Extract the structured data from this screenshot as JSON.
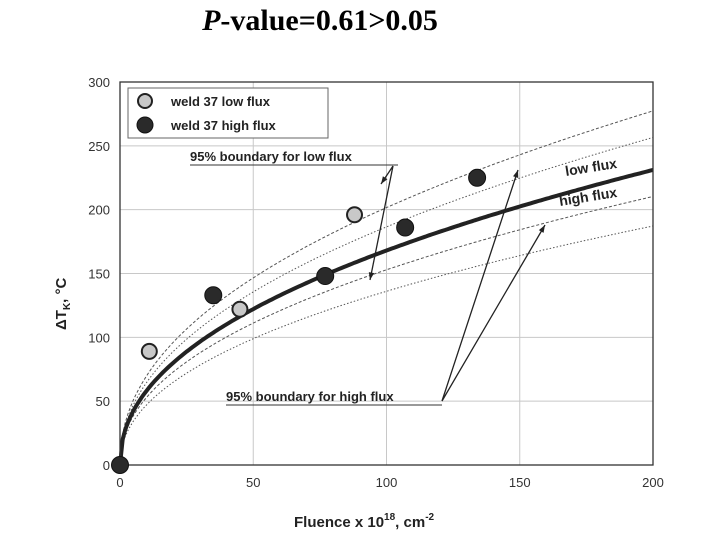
{
  "title": {
    "p_letter": "P",
    "rest": "-value=0.61>0.05"
  },
  "chart_data": {
    "type": "scatter",
    "xlabel_main": "Fluence x 10",
    "xlabel_sup": "18",
    "xlabel_unit": ", cm",
    "xlabel_unit_sup": "-2",
    "ylabel_main": "ΔT",
    "ylabel_sub": "K",
    "ylabel_unit": ", °C",
    "xlim": [
      0,
      200
    ],
    "ylim": [
      0,
      300
    ],
    "x_ticks": [
      0,
      50,
      100,
      150,
      200
    ],
    "y_ticks": [
      0,
      50,
      100,
      150,
      200,
      250,
      300
    ],
    "grid": true,
    "legend_position": "top-left",
    "series": [
      {
        "name": "weld 37 low flux",
        "marker": "open-circle",
        "x": [
          11,
          45,
          88
        ],
        "y": [
          89,
          122,
          196
        ]
      },
      {
        "name": "weld 37 high flux",
        "marker": "filled-circle",
        "x": [
          0,
          35,
          77,
          107,
          134
        ],
        "y": [
          0,
          133,
          148,
          186,
          225
        ]
      }
    ],
    "annotations": {
      "low_boundary": "95% boundary for low flux",
      "high_boundary": "95% boundary for high flux",
      "curve_low": "low flux",
      "curve_high": "high flux"
    },
    "colors": {
      "fit_curve": "#222222",
      "bound_curves": "#555555",
      "low_marker_fill": "#c8c8c8",
      "high_marker_fill": "#2a2a2a"
    }
  }
}
